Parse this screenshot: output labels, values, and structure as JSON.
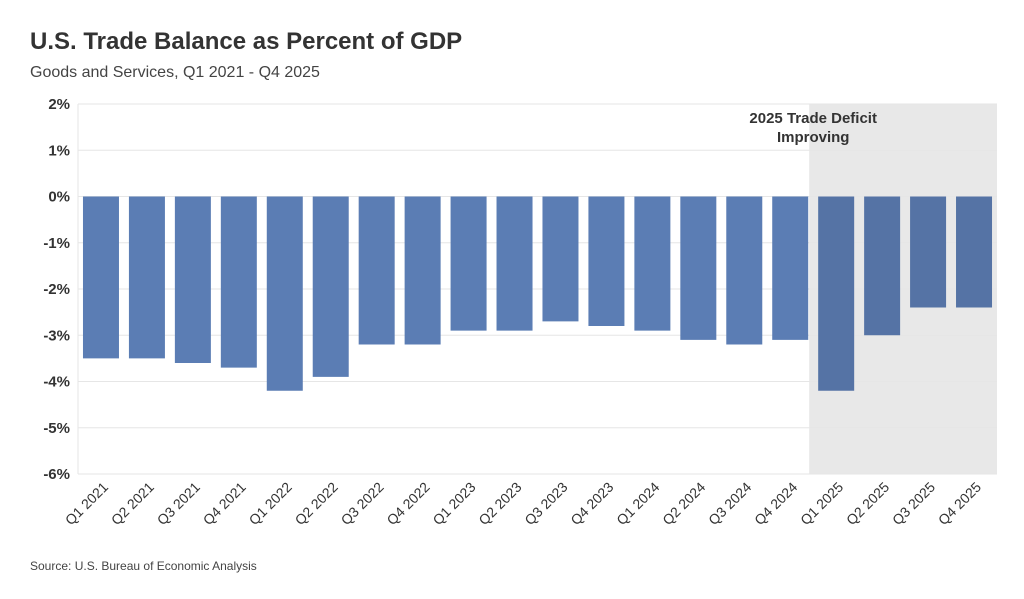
{
  "colors": {
    "bar": "#5b7db4",
    "bar_highlight": "#5573a5",
    "shade": "#e8e8e8",
    "grid": "#e6e6e6"
  },
  "source": "Source: U.S. Bureau of Economic Analysis",
  "chart_data": {
    "type": "bar",
    "title": "U.S. Trade Balance as Percent of GDP",
    "subtitle": "Goods and Services, Q1 2021 - Q4 2025",
    "xlabel": "",
    "ylabel": "",
    "ylim": [
      -6,
      2
    ],
    "yticks": [
      2,
      1,
      0,
      -1,
      -2,
      -3,
      -4,
      -5,
      -6
    ],
    "ytick_labels": [
      "2%",
      "1%",
      "0%",
      "-1%",
      "-2%",
      "-3%",
      "-4%",
      "-5%",
      "-6%"
    ],
    "grid": true,
    "categories": [
      "Q1 2021",
      "Q2 2021",
      "Q3 2021",
      "Q4 2021",
      "Q1 2022",
      "Q2 2022",
      "Q3 2022",
      "Q4 2022",
      "Q1 2023",
      "Q2 2023",
      "Q3 2023",
      "Q4 2023",
      "Q1 2024",
      "Q2 2024",
      "Q3 2024",
      "Q4 2024",
      "Q1 2025",
      "Q2 2025",
      "Q3 2025",
      "Q4 2025"
    ],
    "values": [
      -3.5,
      -3.5,
      -3.6,
      -3.7,
      -4.2,
      -3.9,
      -3.2,
      -3.2,
      -2.9,
      -2.9,
      -2.7,
      -2.8,
      -2.9,
      -3.1,
      -3.2,
      -3.1,
      -4.2,
      -3.0,
      -2.4,
      -2.4
    ],
    "highlight": {
      "from": "Q1 2025",
      "to": "Q4 2025",
      "annotation": [
        "2025 Trade Deficit",
        "Improving"
      ]
    }
  }
}
